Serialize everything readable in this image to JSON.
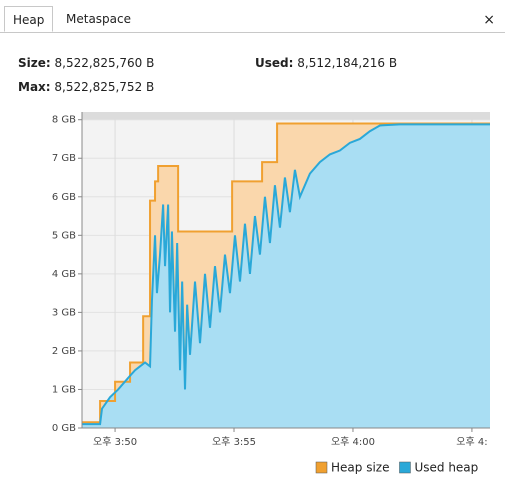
{
  "tabs": [
    "Heap",
    "Metaspace"
  ],
  "close": "×",
  "stats": {
    "size": {
      "label": "Size:",
      "value": "8,522,825,760 B"
    },
    "used": {
      "label": "Used:",
      "value": "8,512,184,216 B"
    },
    "max": {
      "label": "Max:",
      "value": "8,522,825,752 B"
    }
  },
  "chart_data": {
    "type": "area",
    "xlim": [
      948.61,
      965.76
    ],
    "ylim": [
      0,
      8.2
    ],
    "xticks": [
      {
        "value": 950,
        "label": "오후 3:50"
      },
      {
        "value": 955,
        "label": "오후 3:55"
      },
      {
        "value": 960,
        "label": "오후 4:00"
      },
      {
        "value": 965,
        "label": "오후 4:"
      }
    ],
    "yticks": [
      {
        "value": 0,
        "label": "0 GB"
      },
      {
        "value": 1,
        "label": "1 GB"
      },
      {
        "value": 2,
        "label": "2 GB"
      },
      {
        "value": 3,
        "label": "3 GB"
      },
      {
        "value": 4,
        "label": "4 GB"
      },
      {
        "value": 5,
        "label": "5 GB"
      },
      {
        "value": 6,
        "label": "6 GB"
      },
      {
        "value": 7,
        "label": "7 GB"
      },
      {
        "value": 8,
        "label": "8 GB"
      }
    ],
    "grid": true,
    "series": [
      {
        "name": "Heap size",
        "color": "#f0a030",
        "fill": "#fad7ac",
        "x": [
          948.61,
          949.37,
          949.37,
          950,
          950,
          950.63,
          950.63,
          951.18,
          951.18,
          951.47,
          951.47,
          951.68,
          951.68,
          951.81,
          951.81,
          952.65,
          952.65,
          954.92,
          954.92,
          956.18,
          956.18,
          956.81,
          956.81,
          965.76
        ],
        "values": [
          0.15,
          0.15,
          0.7,
          0.7,
          1.2,
          1.2,
          1.7,
          1.7,
          2.9,
          2.9,
          5.9,
          5.9,
          6.4,
          6.4,
          6.8,
          6.8,
          5.1,
          5.1,
          6.4,
          6.4,
          6.9,
          6.9,
          7.9,
          7.9
        ]
      },
      {
        "name": "Used heap",
        "color": "#2aa8d8",
        "fill": "#a9def3",
        "x": [
          948.61,
          949.37,
          949.45,
          949.79,
          950.13,
          950.55,
          950.84,
          951.05,
          951.26,
          951.47,
          951.55,
          951.68,
          951.76,
          951.89,
          952.02,
          952.1,
          952.23,
          952.31,
          952.39,
          952.52,
          952.61,
          952.73,
          952.82,
          952.94,
          953.03,
          953.15,
          953.36,
          953.57,
          953.78,
          953.99,
          954.2,
          954.41,
          954.62,
          954.83,
          955.04,
          955.25,
          955.46,
          955.67,
          955.88,
          956.09,
          956.3,
          956.51,
          956.72,
          956.93,
          957.14,
          957.35,
          957.56,
          957.77,
          958.19,
          958.61,
          959.03,
          959.45,
          959.87,
          960.29,
          960.71,
          961.13,
          961.97,
          965.76
        ],
        "values": [
          0.1,
          0.1,
          0.5,
          0.8,
          1.0,
          1.3,
          1.5,
          1.6,
          1.7,
          1.6,
          3.3,
          5.0,
          3.5,
          4.5,
          5.8,
          4.2,
          5.8,
          3.0,
          5.1,
          2.5,
          4.8,
          1.5,
          3.8,
          1.0,
          3.2,
          1.9,
          3.8,
          2.2,
          4.0,
          2.6,
          4.2,
          3.0,
          4.5,
          3.5,
          5.0,
          3.8,
          5.3,
          4.0,
          5.5,
          4.5,
          6.0,
          4.8,
          6.3,
          5.2,
          6.5,
          5.6,
          6.7,
          6.0,
          6.6,
          6.9,
          7.1,
          7.2,
          7.4,
          7.5,
          7.7,
          7.85,
          7.88,
          7.88
        ]
      }
    ]
  }
}
